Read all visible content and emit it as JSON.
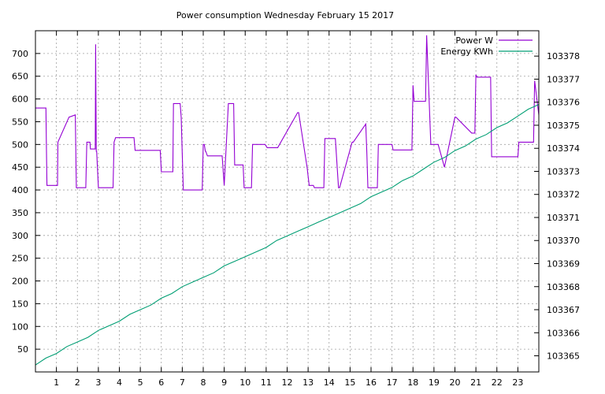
{
  "chart_data": {
    "type": "line",
    "title": "Power consumption Wednesday February 15 2017",
    "xlabel": "",
    "ylabel": "",
    "y2label": "",
    "xlim": [
      0,
      24
    ],
    "ylim": [
      0,
      750
    ],
    "y2lim": [
      103364.3,
      103379.1
    ],
    "grid": true,
    "legend_position": "top-right",
    "x_ticks": [
      "1",
      "2",
      "3",
      "4",
      "5",
      "6",
      "7",
      "8",
      "9",
      "10",
      "11",
      "12",
      "13",
      "14",
      "15",
      "16",
      "17",
      "18",
      "19",
      "20",
      "21",
      "22",
      "23"
    ],
    "y_ticks": [
      "50",
      "100",
      "150",
      "200",
      "250",
      "300",
      "350",
      "400",
      "450",
      "500",
      "550",
      "600",
      "650",
      "700"
    ],
    "y2_ticks": [
      "103365",
      "103366",
      "103367",
      "103368",
      "103369",
      "103370",
      "103371",
      "103372",
      "103373",
      "103374",
      "103375",
      "103376",
      "103377",
      "103378"
    ],
    "series": [
      {
        "name": "Power W",
        "color": "#9400d3",
        "axis": "y",
        "x": [
          0,
          0.5,
          0.52,
          0.55,
          0.6,
          1.05,
          1.07,
          1.6,
          1.9,
          1.95,
          2.4,
          2.45,
          2.6,
          2.62,
          2.85,
          2.87,
          2.9,
          2.92,
          3.0,
          3.7,
          3.75,
          3.82,
          4.7,
          4.75,
          5.95,
          6.0,
          6.55,
          6.58,
          6.9,
          6.95,
          7.05,
          7.1,
          7.45,
          7.95,
          8.0,
          8.05,
          8.1,
          8.12,
          8.2,
          8.4,
          8.9,
          9.0,
          9.2,
          9.45,
          9.5,
          9.9,
          9.95,
          10.3,
          10.35,
          10.95,
          11.05,
          11.5,
          11.55,
          12.5,
          12.55,
          12.95,
          13.05,
          13.1,
          13.25,
          13.3,
          13.75,
          13.8,
          14.3,
          14.45,
          14.5,
          15.1,
          15.15,
          15.75,
          15.8,
          15.85,
          16.3,
          16.35,
          17.0,
          17.05,
          17.95,
          18.0,
          18.05,
          18.4,
          18.6,
          18.65,
          18.85,
          19.2,
          19.5,
          20.0,
          20.05,
          20.8,
          20.95,
          21.0,
          21.05,
          21.7,
          21.75,
          23.0,
          23.05,
          23.75,
          23.8,
          24.0
        ],
        "values": [
          580,
          580,
          510,
          410,
          410,
          410,
          505,
          560,
          565,
          405,
          405,
          505,
          505,
          490,
          490,
          720,
          485,
          485,
          405,
          405,
          505,
          515,
          515,
          487,
          487,
          440,
          440,
          590,
          590,
          560,
          400,
          400,
          400,
          400,
          500,
          500,
          485,
          485,
          475,
          475,
          475,
          410,
          590,
          590,
          455,
          455,
          405,
          405,
          500,
          500,
          493,
          493,
          493,
          570,
          570,
          450,
          410,
          410,
          410,
          405,
          405,
          513,
          513,
          405,
          405,
          505,
          505,
          545,
          480,
          405,
          405,
          500,
          500,
          488,
          488,
          630,
          595,
          595,
          595,
          740,
          500,
          500,
          450,
          560,
          560,
          525,
          525,
          653,
          648,
          648,
          473,
          473,
          505,
          505,
          640,
          565
        ]
      },
      {
        "name": "Energy KWh",
        "color": "#009e73",
        "axis": "y2",
        "x": [
          0,
          0.5,
          1.0,
          1.5,
          2.0,
          2.5,
          3.0,
          3.5,
          4.0,
          4.5,
          5.0,
          5.5,
          6.0,
          6.5,
          7.0,
          7.5,
          8.0,
          8.5,
          9.0,
          9.5,
          10.0,
          10.5,
          11.0,
          11.5,
          12.0,
          12.5,
          13.0,
          13.5,
          14.0,
          14.5,
          15.0,
          15.5,
          16.0,
          16.5,
          17.0,
          17.5,
          18.0,
          18.5,
          19.0,
          19.5,
          20.0,
          20.5,
          21.0,
          21.5,
          22.0,
          22.5,
          23.0,
          23.5,
          24.0
        ],
        "values": [
          103364.6,
          103364.9,
          103365.1,
          103365.4,
          103365.6,
          103365.8,
          103366.1,
          103366.3,
          103366.5,
          103366.8,
          103367.0,
          103367.2,
          103367.5,
          103367.7,
          103368.0,
          103368.2,
          103368.4,
          103368.6,
          103368.9,
          103369.1,
          103369.3,
          103369.5,
          103369.7,
          103370.0,
          103370.2,
          103370.4,
          103370.6,
          103370.8,
          103371.0,
          103371.2,
          103371.4,
          103371.6,
          103371.9,
          103372.1,
          103372.3,
          103372.6,
          103372.8,
          103373.1,
          103373.4,
          103373.6,
          103373.9,
          103374.1,
          103374.4,
          103374.6,
          103374.9,
          103375.1,
          103375.4,
          103375.7,
          103375.9
        ]
      }
    ]
  }
}
